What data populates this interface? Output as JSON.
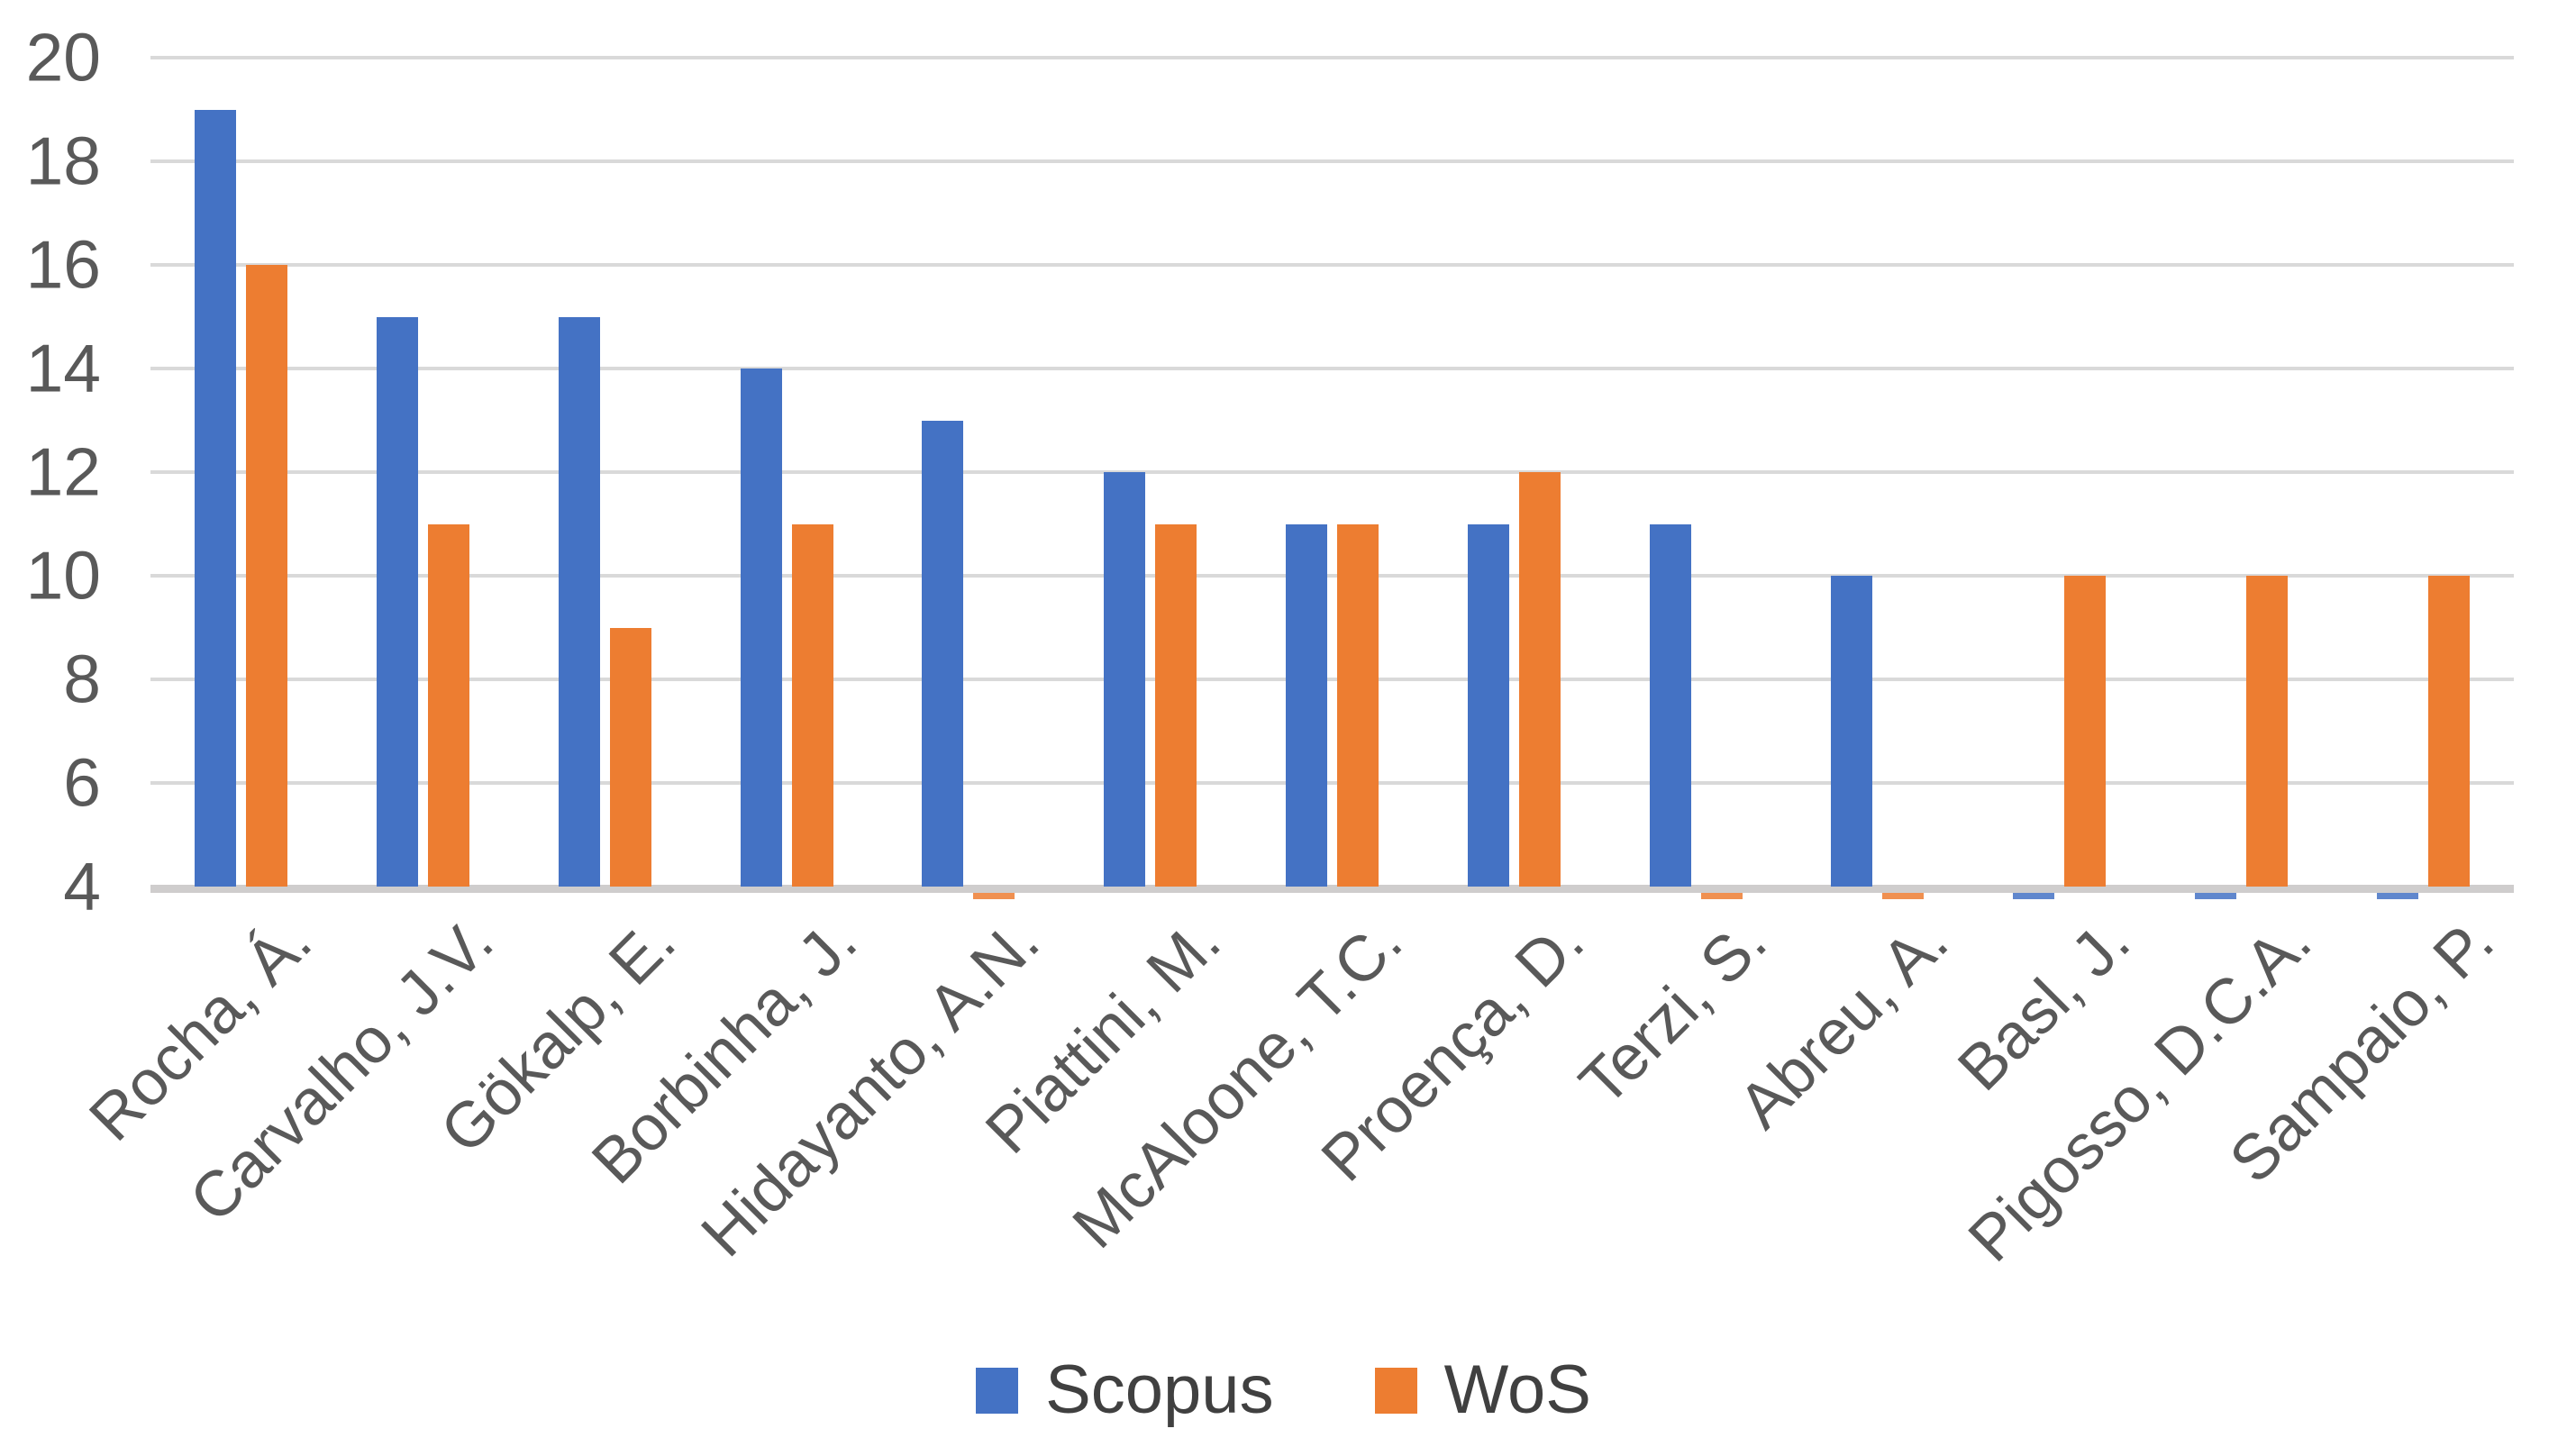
{
  "chart_data": {
    "type": "bar",
    "title": "",
    "xlabel": "",
    "ylabel": "",
    "categories": [
      "Rocha, Á.",
      "Carvalho, J.V.",
      "Gökalp, E.",
      "Borbinha, J.",
      "Hidayanto, A.N.",
      "Piattini, M.",
      "McAloone, T.C.",
      "Proença, D.",
      "Terzi, S.",
      "Abreu, A.",
      "Basl, J.",
      "Pigosso, D.C.A.",
      "Sampaio, P."
    ],
    "series": [
      {
        "name": "Scopus",
        "color": "#4472C4",
        "values": [
          19,
          15,
          15,
          14,
          13,
          12,
          11,
          11,
          11,
          10,
          4,
          4,
          4
        ],
        "clipped_below_min": [
          false,
          false,
          false,
          false,
          false,
          false,
          false,
          false,
          false,
          false,
          true,
          true,
          true
        ]
      },
      {
        "name": "WoS",
        "color": "#ED7D31",
        "values": [
          16,
          11,
          9,
          11,
          4,
          11,
          11,
          12,
          4,
          4,
          10,
          10,
          10
        ],
        "clipped_below_min": [
          false,
          false,
          false,
          false,
          true,
          false,
          false,
          false,
          true,
          true,
          false,
          false,
          false
        ]
      }
    ],
    "ylim": [
      4,
      20
    ],
    "ytick_step": 2,
    "yticks": [
      "20",
      "18",
      "16",
      "14",
      "12",
      "10",
      "8",
      "6",
      "4"
    ],
    "grid": "horizontal-only",
    "legend_position": "bottom-center",
    "note": "Bars marked clipped_below_min render as tiny slivers just below the baseline because the y-axis minimum is 4."
  },
  "colors": {
    "gridline": "#d9d9d9",
    "axis_line": "#cfcdcd",
    "tick_text": "#595959",
    "legend_text": "#404040",
    "background": "#ffffff"
  }
}
